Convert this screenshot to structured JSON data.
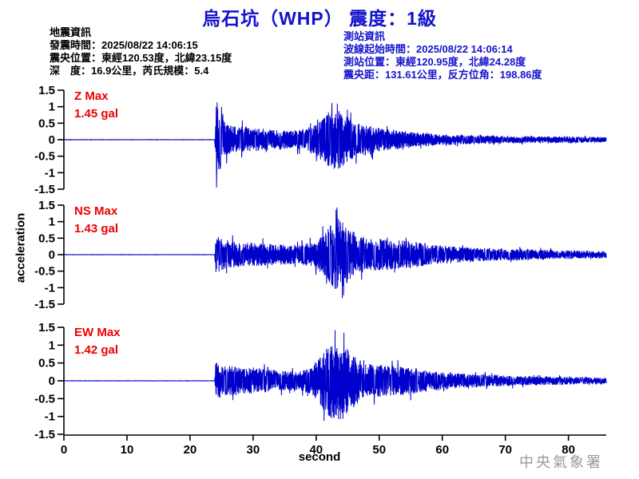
{
  "title": "烏石坑（WHP） 震度：1級",
  "colors": {
    "title": "#1111cc",
    "info_left": "#000000",
    "info_right": "#1414cc",
    "waveform": "#0000cc",
    "max_label": "#ee0000",
    "axis": "#000000",
    "watermark": "#9b9b9b"
  },
  "quake_info": {
    "heading": "地震資訊",
    "lines": [
      "發震時間：2025/08/22 14:06:15",
      "震央位置：東經120.53度，北緯23.15度",
      "深　度：16.9公里，芮氏規模：5.4"
    ]
  },
  "station_info": {
    "heading": "測站資訊",
    "lines": [
      "波線起始時間：2025/08/22 14:06:14",
      "測站位置：東經120.95度，北緯24.28度",
      "震央距：131.61公里，反方位角：198.86度"
    ]
  },
  "watermark": "中央氣象署",
  "chart_data": {
    "type": "line",
    "title": "烏石坑（WHP） 震度：1級",
    "xlabel": "second",
    "ylabel": "acceleration",
    "units": "gal",
    "xlim": [
      0,
      86
    ],
    "ylim": [
      -1.5,
      1.5
    ],
    "x_ticks": [
      0,
      10,
      20,
      30,
      40,
      50,
      60,
      70,
      80
    ],
    "y_ticks": [
      1.5,
      1,
      0.5,
      0,
      -0.5,
      -1,
      -1.5
    ],
    "y_tick_labels": [
      "1.5",
      "1",
      "0.5",
      "0",
      "-0.5",
      "-1",
      "-1.5"
    ],
    "grid": false,
    "event_start_s": 24,
    "series": [
      {
        "name": "Z",
        "max_label": "Z Max",
        "max_value_label": "1.45 gal",
        "max_gal": 1.45,
        "peak_time_s": 24.2,
        "peak_polarity": -1,
        "envelope_gal": [
          [
            0,
            0.005
          ],
          [
            23.9,
            0.005
          ],
          [
            24.05,
            0.6
          ],
          [
            24.2,
            1.45
          ],
          [
            24.7,
            1.0
          ],
          [
            25.3,
            0.6
          ],
          [
            26.5,
            0.45
          ],
          [
            29,
            0.4
          ],
          [
            32,
            0.33
          ],
          [
            35,
            0.3
          ],
          [
            38,
            0.32
          ],
          [
            40,
            0.5
          ],
          [
            41.5,
            0.85
          ],
          [
            43,
            1.0
          ],
          [
            44.5,
            0.8
          ],
          [
            46,
            0.55
          ],
          [
            48,
            0.45
          ],
          [
            51,
            0.35
          ],
          [
            54,
            0.28
          ],
          [
            58,
            0.2
          ],
          [
            62,
            0.16
          ],
          [
            68,
            0.13
          ],
          [
            74,
            0.11
          ],
          [
            80,
            0.1
          ],
          [
            86,
            0.08
          ]
        ]
      },
      {
        "name": "NS",
        "max_label": "NS Max",
        "max_value_label": "1.43 gal",
        "max_gal": 1.43,
        "peak_time_s": 43.3,
        "peak_polarity": 1,
        "envelope_gal": [
          [
            0,
            0.005
          ],
          [
            23.9,
            0.005
          ],
          [
            24.1,
            0.8
          ],
          [
            24.8,
            0.6
          ],
          [
            26,
            0.5
          ],
          [
            28,
            0.45
          ],
          [
            31,
            0.42
          ],
          [
            34,
            0.38
          ],
          [
            37,
            0.36
          ],
          [
            39.5,
            0.45
          ],
          [
            41,
            0.7
          ],
          [
            42.3,
            1.1
          ],
          [
            43.3,
            1.43
          ],
          [
            44.3,
            1.25
          ],
          [
            45.5,
            0.9
          ],
          [
            47,
            0.7
          ],
          [
            49,
            0.6
          ],
          [
            52,
            0.55
          ],
          [
            55,
            0.5
          ],
          [
            58,
            0.4
          ],
          [
            61,
            0.32
          ],
          [
            64,
            0.27
          ],
          [
            68,
            0.23
          ],
          [
            73,
            0.2
          ],
          [
            78,
            0.17
          ],
          [
            86,
            0.13
          ]
        ]
      },
      {
        "name": "EW",
        "max_label": "EW Max",
        "max_value_label": "1.42 gal",
        "max_gal": 1.42,
        "peak_time_s": 43.0,
        "peak_polarity": 1,
        "envelope_gal": [
          [
            0,
            0.005
          ],
          [
            23.9,
            0.005
          ],
          [
            24.1,
            0.65
          ],
          [
            25,
            0.55
          ],
          [
            27,
            0.5
          ],
          [
            29,
            0.45
          ],
          [
            32,
            0.4
          ],
          [
            35,
            0.33
          ],
          [
            37.5,
            0.33
          ],
          [
            39.5,
            0.5
          ],
          [
            41,
            0.9
          ],
          [
            42.2,
            1.25
          ],
          [
            43,
            1.42
          ],
          [
            44,
            1.35
          ],
          [
            45.2,
            1.1
          ],
          [
            46.5,
            0.8
          ],
          [
            48,
            0.6
          ],
          [
            50,
            0.55
          ],
          [
            53,
            0.5
          ],
          [
            56,
            0.42
          ],
          [
            59,
            0.33
          ],
          [
            62,
            0.27
          ],
          [
            66,
            0.22
          ],
          [
            70,
            0.18
          ],
          [
            75,
            0.15
          ],
          [
            80,
            0.13
          ],
          [
            86,
            0.1
          ]
        ]
      }
    ]
  }
}
